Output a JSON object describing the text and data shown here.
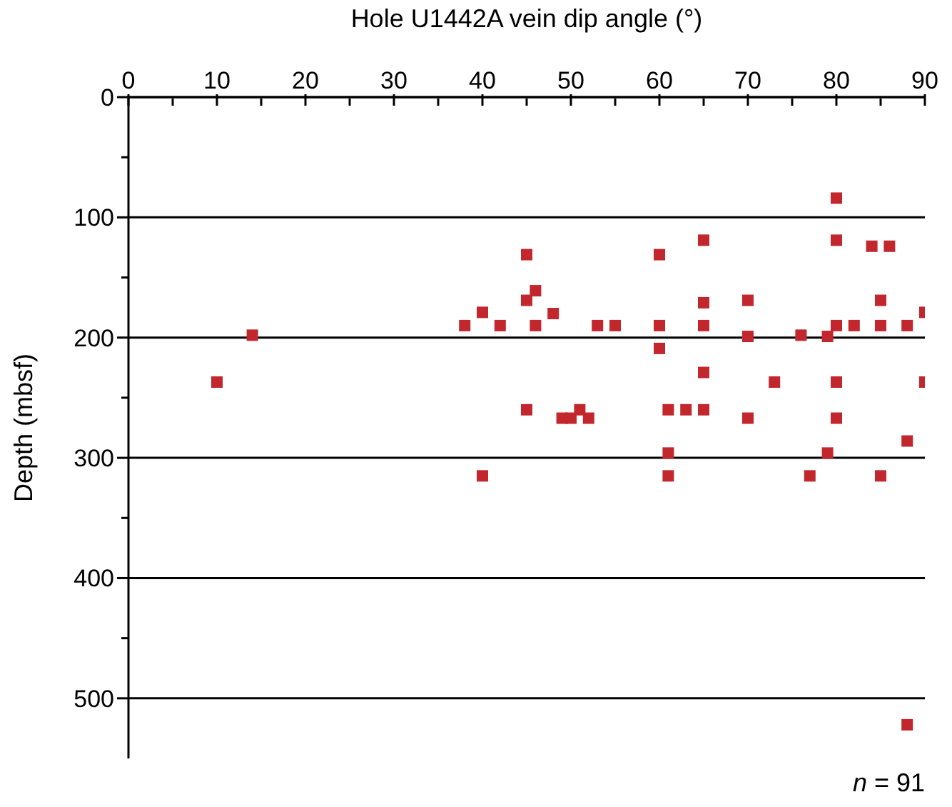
{
  "chart_data": {
    "type": "scatter",
    "xlabel": "Hole U1442A vein dip angle (°)",
    "ylabel": "Depth (mbsf)",
    "x": [
      80,
      65,
      80,
      84,
      86,
      45,
      60,
      14,
      10,
      46,
      45,
      40,
      48,
      65,
      70,
      85,
      90,
      38,
      42,
      46,
      53,
      55,
      60,
      65,
      80,
      82,
      85,
      88,
      70,
      76,
      79,
      60,
      65,
      73,
      80,
      90,
      45,
      61,
      63,
      65,
      51,
      49,
      50,
      52,
      70,
      80,
      88,
      61,
      79,
      40,
      61,
      77,
      85,
      88
    ],
    "values": [
      84,
      119,
      119,
      124,
      124,
      131,
      131,
      198,
      237,
      161,
      169,
      179,
      180,
      171,
      169,
      169,
      179,
      190,
      190,
      190,
      190,
      190,
      190,
      190,
      190,
      190,
      190,
      190,
      199,
      198,
      199,
      209,
      229,
      237,
      237,
      237,
      260,
      260,
      260,
      260,
      260,
      267,
      267,
      267,
      267,
      267,
      286,
      296,
      296,
      315,
      315,
      315,
      315,
      522
    ],
    "color": "#c1272d",
    "marker": "square",
    "xlim": [
      0,
      90
    ],
    "xticks": [
      0,
      {
        "value": 5,
        "label": null
      },
      10,
      {
        "value": 15,
        "label": null
      },
      20,
      {
        "value": 25,
        "label": null
      },
      30,
      {
        "value": 35,
        "label": null
      },
      40,
      {
        "value": 45,
        "label": null
      },
      50,
      {
        "value": 55,
        "label": null
      },
      60,
      {
        "value": 65,
        "label": null
      },
      70,
      {
        "value": 75,
        "label": null
      },
      80,
      {
        "value": 85,
        "label": null
      },
      90
    ],
    "ylim": [
      550,
      0
    ],
    "yticks": [
      0,
      {
        "value": 50,
        "label": null
      },
      100,
      {
        "value": 150,
        "label": null
      },
      200,
      {
        "value": 250,
        "label": null
      },
      300,
      {
        "value": 350,
        "label": null
      },
      400,
      {
        "value": 450,
        "label": null
      },
      500
    ],
    "grid": "y",
    "annotations": [
      "n = 91"
    ]
  }
}
